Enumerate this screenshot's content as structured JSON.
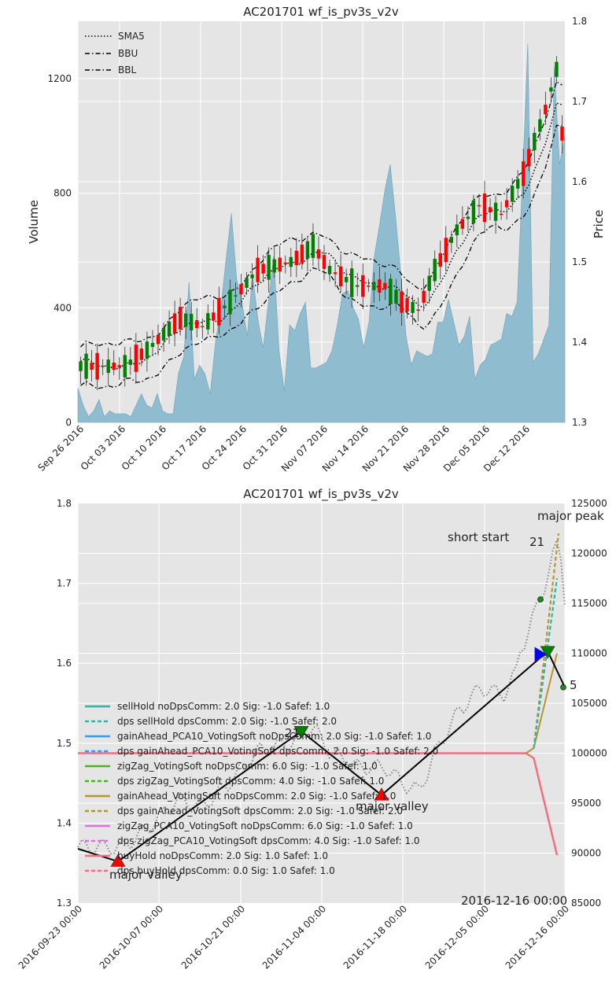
{
  "colors": {
    "plot_bg": "#e5e5e5",
    "area": "#8fbcce",
    "up": "#008000",
    "down": "#ff0000",
    "zigzag": "#000000",
    "price": "#888888"
  },
  "chart_data": [
    {
      "type": "candlestick+area",
      "title": "AC201701 wf_is_pv3s_v2v",
      "ylabel_left": "Volume",
      "ylabel_right": "Price",
      "ylim_left": [
        0,
        1400
      ],
      "ylim_right": [
        1.3,
        1.8
      ],
      "left_ticks": [
        "0",
        "400",
        "800",
        "1200"
      ],
      "right_ticks": [
        "1.3",
        "1.4",
        "1.5",
        "1.6",
        "1.7",
        "1.8"
      ],
      "x_tick_labels": [
        "Sep 26 2016",
        "Oct 03 2016",
        "Oct 10 2016",
        "Oct 17 2016",
        "Oct 24 2016",
        "Oct 31 2016",
        "Nov 07 2016",
        "Nov 14 2016",
        "Nov 21 2016",
        "Nov 28 2016",
        "Dec 05 2016",
        "Dec 12 2016"
      ],
      "legend": [
        "SMA5",
        "BBU",
        "BBL"
      ],
      "volume": [
        120,
        60,
        20,
        40,
        80,
        20,
        40,
        30,
        30,
        30,
        20,
        60,
        100,
        60,
        50,
        100,
        40,
        30,
        30,
        170,
        230,
        490,
        150,
        200,
        170,
        100,
        280,
        400,
        570,
        730,
        500,
        420,
        300,
        520,
        360,
        260,
        420,
        580,
        250,
        110,
        340,
        320,
        380,
        420,
        190,
        190,
        200,
        210,
        250,
        340,
        450,
        460,
        400,
        360,
        260,
        350,
        580,
        690,
        810,
        900,
        720,
        520,
        300,
        200,
        250,
        240,
        230,
        240,
        350,
        350,
        430,
        350,
        270,
        300,
        370,
        150,
        200,
        220,
        270,
        280,
        290,
        380,
        370,
        420,
        860,
        1320,
        210,
        240,
        290,
        340,
        1240,
        900,
        1000
      ]
    },
    {
      "type": "line",
      "title": "AC201701 wf_is_pv3s_v2v",
      "ylim_left": [
        1.3,
        1.8
      ],
      "ylim_right": [
        85000,
        125000
      ],
      "left_ticks": [
        "1.3",
        "1.4",
        "1.5",
        "1.6",
        "1.7",
        "1.8"
      ],
      "right_ticks": [
        "85000",
        "90000",
        "95000",
        "100000",
        "105000",
        "110000",
        "115000",
        "120000",
        "125000"
      ],
      "x_tick_labels": [
        "2016-09-23 00:00",
        "2016-10-07 00:00",
        "2016-10-21 00:00",
        "2016-11-04 00:00",
        "2016-11-18 00:00",
        "2016-12-05 00:00",
        "2016-12-16 00:00"
      ],
      "date_annotation": "2016-12-16 00:00",
      "legend": [
        {
          "label": "sellHold noDpsComm: 2.0 Sig: -1.0 Safef: 1.0",
          "color": "#2cb5a8",
          "dash": false
        },
        {
          "label": "dps sellHold dpsComm: 2.0 Sig: -1.0 Safef: 2.0",
          "color": "#2cb5a8",
          "dash": true
        },
        {
          "label": "gainAhead_PCA10_VotingSoft noDpsComm: 2.0 Sig: -1.0 Safef: 1.0",
          "color": "#3399ff",
          "dash": false
        },
        {
          "label": "dps gainAhead_PCA10_VotingSoft dpsComm: 2.0 Sig: -1.0 Safef: 2.0",
          "color": "#3399ff",
          "dash": true
        },
        {
          "label": "zigZag_VotingSoft noDpsComm: 6.0 Sig: -1.0 Safef: 1.0",
          "color": "#4caf25",
          "dash": false
        },
        {
          "label": "dps zigZag_VotingSoft dpsComm: 4.0 Sig: -1.0 Safef: 1.0",
          "color": "#4caf25",
          "dash": true
        },
        {
          "label": "gainAhead_VotingSoft noDpsComm: 2.0 Sig: -1.0 Safef: 1.0",
          "color": "#b8952c",
          "dash": false
        },
        {
          "label": "dps gainAhead_VotingSoft dpsComm: 2.0 Sig: -1.0 Safef: 2.0",
          "color": "#b8952c",
          "dash": true
        },
        {
          "label": "zigZag_PCA10_VotingSoft noDpsComm: 6.0 Sig: -1.0 Safef: 1.0",
          "color": "#e070e0",
          "dash": false
        },
        {
          "label": "dps zigZag_PCA10_VotingSoft dpsComm: 4.0 Sig: -1.0 Safef: 1.0",
          "color": "#e070e0",
          "dash": true
        },
        {
          "label": "buyHold noDpsComm: 2.0 Sig: 1.0 Safef: 1.0",
          "color": "#f07080",
          "dash": false
        },
        {
          "label": "dps buyHold dpsComm: 0.0 Sig: 1.0 Safef: 1.0",
          "color": "#f07080",
          "dash": true
        }
      ],
      "annotations": [
        "short start",
        "major peak",
        "21",
        "major valley",
        "major valley",
        "21",
        "5"
      ],
      "zigzag": [
        {
          "date": "2016-09-23",
          "price": 1.368
        },
        {
          "date": "2016-09-30",
          "price": 1.352
        },
        {
          "date": "2016-11-01",
          "price": 1.515
        },
        {
          "date": "2016-11-15",
          "price": 1.435
        },
        {
          "date": "2016-12-14",
          "price": 1.615
        },
        {
          "date": "2016-12-17",
          "price": 1.57
        }
      ]
    }
  ]
}
